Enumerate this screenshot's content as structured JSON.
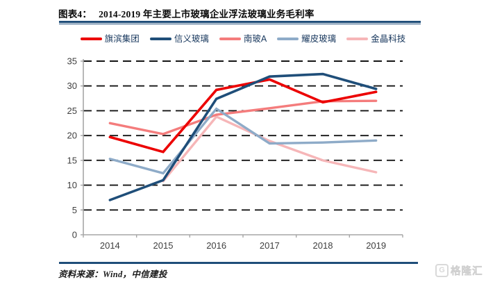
{
  "header": {
    "prefix": "图表4：",
    "title": "2014-2019 年主要上市玻璃企业浮法玻璃业务毛利率"
  },
  "source": {
    "label": "资料来源：Wind，中信建投"
  },
  "watermark": {
    "icon": "G",
    "text": "格隆汇"
  },
  "colors": {
    "rule": "#1f4e79",
    "axis": "#a6a6a6",
    "grid": "#141414",
    "tick_label": "#3f3f3f",
    "legend_text": "#16365c"
  },
  "chart_data": {
    "type": "line",
    "title": "2014-2019 年主要上市玻璃企业浮法玻璃业务毛利率",
    "x": [
      2014,
      2015,
      2016,
      2017,
      2018,
      2019
    ],
    "series": [
      {
        "name": "旗滨集团",
        "color": "#ec0000",
        "width": 3.6,
        "values": [
          19.7,
          16.7,
          29.2,
          31.3,
          26.7,
          28.8
        ]
      },
      {
        "name": "信义玻璃",
        "color": "#1f4e79",
        "width": 3.6,
        "values": [
          7.0,
          11.0,
          27.4,
          31.9,
          32.4,
          29.4
        ]
      },
      {
        "name": "南玻A",
        "color": "#f47c7c",
        "width": 3.4,
        "values": [
          22.5,
          20.3,
          24.2,
          25.5,
          26.9,
          27.0
        ]
      },
      {
        "name": "耀皮玻璃",
        "color": "#8eabc8",
        "width": 3.4,
        "values": [
          15.3,
          12.4,
          25.4,
          18.4,
          18.6,
          19.0
        ]
      },
      {
        "name": "金晶科技",
        "color": "#f6b6b8",
        "width": 3.4,
        "values": [
          null,
          10.8,
          23.8,
          18.9,
          15.0,
          12.6
        ]
      }
    ],
    "draw_order": [
      4,
      2,
      3,
      0,
      1
    ],
    "ylim": [
      0,
      35
    ],
    "ytick_step": 5,
    "xlabel": "",
    "ylabel": "",
    "grid": "horizontal-dashed",
    "legend_position": "top"
  }
}
